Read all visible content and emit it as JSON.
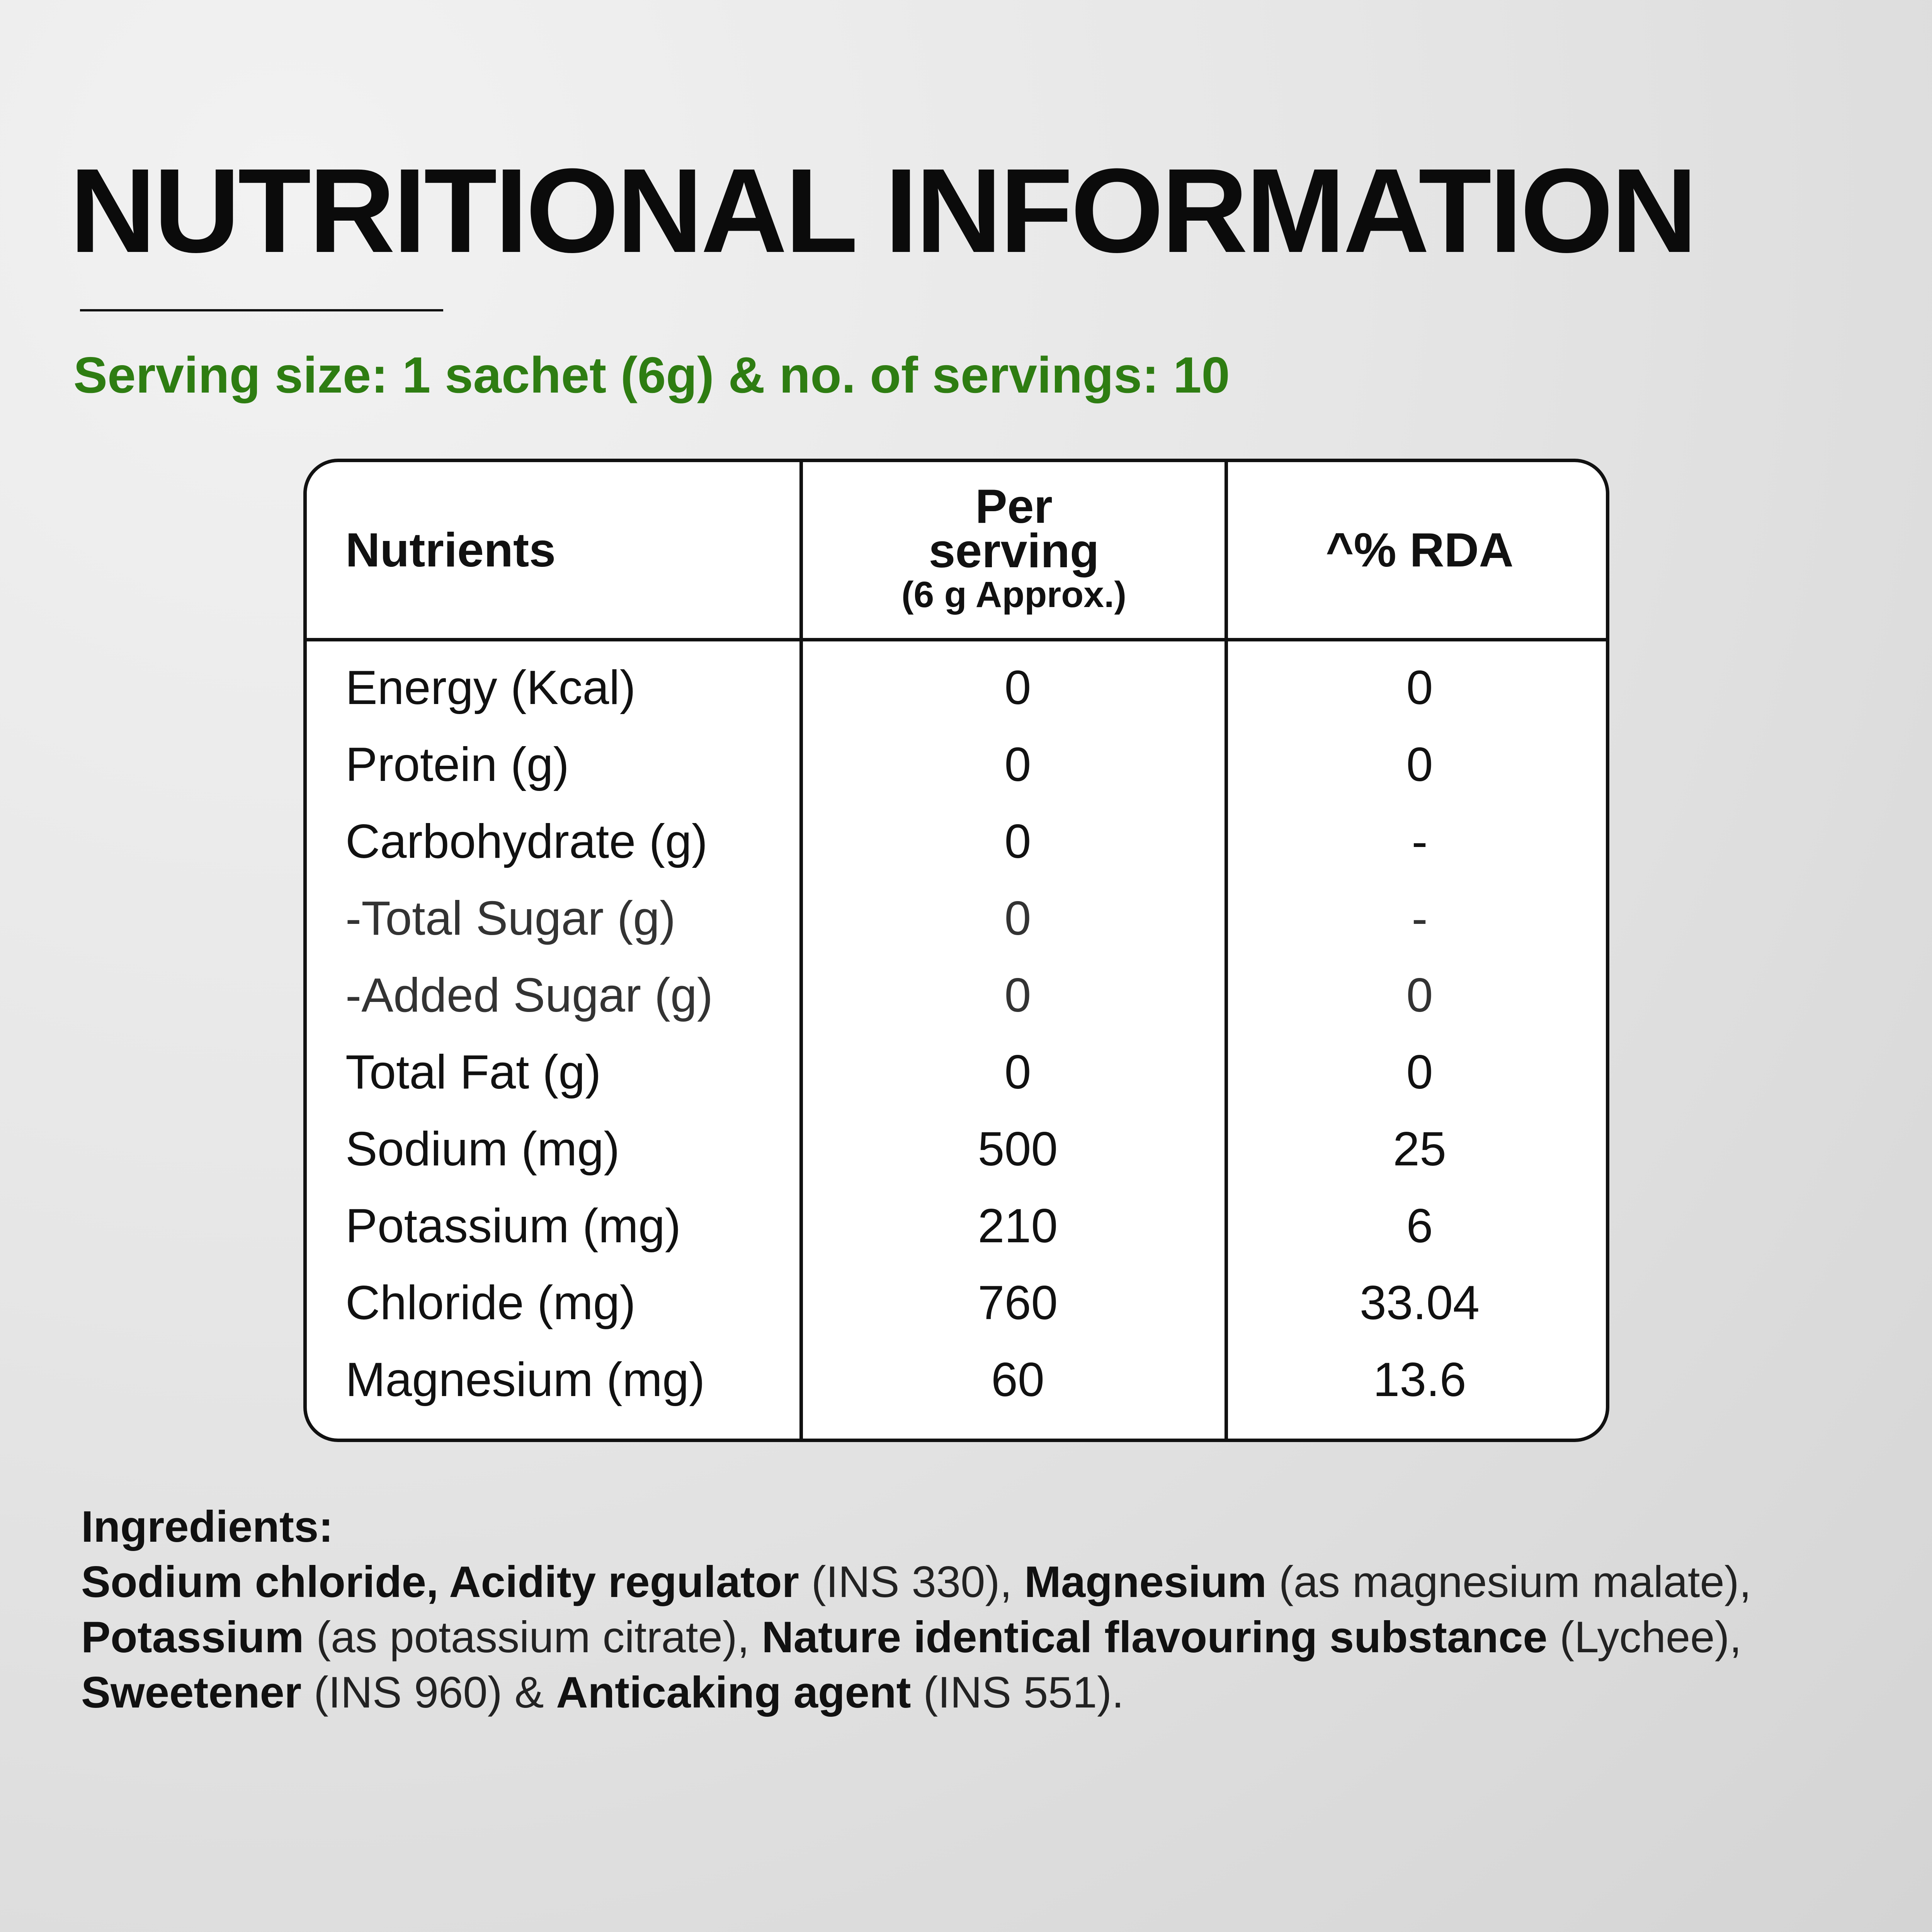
{
  "title": "NUTRITIONAL INFORMATION",
  "serving": "Serving size: 1 sachet (6g) & no. of servings: 10",
  "accent_color": "#2e7d12",
  "table": {
    "header": {
      "nutrients": "Nutrients",
      "per_line1": "Per",
      "per_line2": "serving",
      "per_line3": "(6 g Approx.)",
      "rda": "^% RDA"
    },
    "rows": [
      {
        "name": "Energy (Kcal)",
        "per": "0",
        "rda": "0"
      },
      {
        "name": "Protein (g)",
        "per": "0",
        "rda": "0"
      },
      {
        "name": "Carbohydrate (g)",
        "per": "0",
        "rda": "-"
      },
      {
        "name": "-Total Sugar (g)",
        "per": "0",
        "rda": "-"
      },
      {
        "name": "-Added Sugar (g)",
        "per": "0",
        "rda": "0"
      },
      {
        "name": "Total Fat (g)",
        "per": "0",
        "rda": "0"
      },
      {
        "name": "Sodium (mg)",
        "per": "500",
        "rda": "25"
      },
      {
        "name": "Potassium (mg)",
        "per": "210",
        "rda": "6"
      },
      {
        "name": "Chloride (mg)",
        "per": "760",
        "rda": "33.04"
      },
      {
        "name": "Magnesium (mg)",
        "per": "60",
        "rda": "13.6"
      }
    ]
  },
  "ingredients": {
    "title": "Ingredients:",
    "parts": [
      {
        "b": "Sodium chloride, Acidity regulator",
        "t": " (INS 330), "
      },
      {
        "b": "Magnesium",
        "t": " (as magnesium malate), "
      },
      {
        "b": "Potassium",
        "t": " (as potassium citrate), "
      },
      {
        "b": "Nature identical flavouring substance",
        "t": " (Lychee), "
      },
      {
        "b": "Sweetener",
        "t": " (INS 960) & "
      },
      {
        "b": "Anticaking agent",
        "t": " (INS 551)."
      }
    ]
  }
}
